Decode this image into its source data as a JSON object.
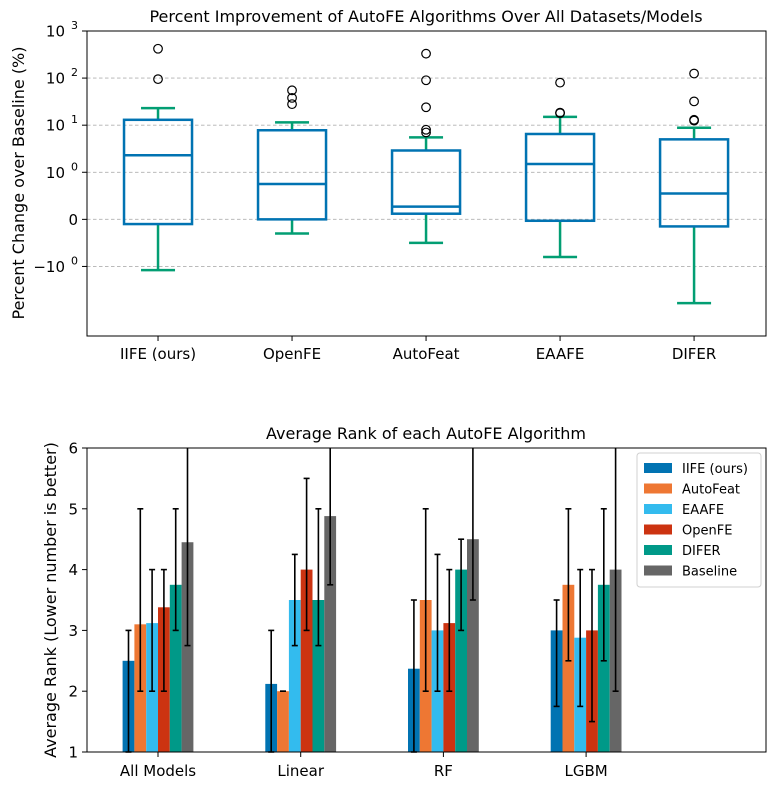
{
  "chart_data": [
    {
      "type": "box",
      "title": "Percent Improvement of AutoFE Algorithms Over All Datasets/Models",
      "ylabel": "Percent Change over Baseline (%)",
      "yscale": "symlog",
      "ylim": [
        -30,
        1000
      ],
      "yticks": [
        {
          "value": 1000,
          "label": "10",
          "exp": "3"
        },
        {
          "value": 100,
          "label": "10",
          "exp": "2"
        },
        {
          "value": 10,
          "label": "10",
          "exp": "1"
        },
        {
          "value": 1,
          "label": "10",
          "exp": "0"
        },
        {
          "value": 0,
          "label": "0",
          "exp": ""
        },
        {
          "value": -1,
          "label": "−10",
          "exp": "0"
        }
      ],
      "grid": "y",
      "box_color": "#0173b2",
      "whisker_color": "#029e73",
      "categories": [
        "IIFE (ours)",
        "OpenFE",
        "AutoFeat",
        "EAAFE",
        "DIFER"
      ],
      "boxes": [
        {
          "whislo": -1.2,
          "q1": -0.1,
          "med": 2.3,
          "q3": 13,
          "whishi": 23,
          "fliers": [
            95,
            420
          ]
        },
        {
          "whislo": -0.3,
          "q1": 0.0,
          "med": 0.75,
          "q3": 7.8,
          "whishi": 11.5,
          "fliers": [
            28,
            38,
            55
          ]
        },
        {
          "whislo": -0.5,
          "q1": 0.12,
          "med": 0.27,
          "q3": 2.9,
          "whishi": 5.5,
          "fliers": [
            7.0,
            8.0,
            24,
            90,
            330
          ]
        },
        {
          "whislo": -0.8,
          "q1": -0.03,
          "med": 1.5,
          "q3": 6.5,
          "whishi": 15,
          "fliers": [
            18,
            18.5,
            80
          ]
        },
        {
          "whislo": -6.0,
          "q1": -0.15,
          "med": 0.55,
          "q3": 5.0,
          "whishi": 8.8,
          "fliers": [
            12.5,
            13,
            32,
            125
          ]
        }
      ]
    },
    {
      "type": "bar",
      "title": "Average Rank of each AutoFE Algorithm",
      "ylabel": "Average Rank (Lower number is better)",
      "ylim": [
        1,
        6
      ],
      "yticks": [
        1,
        2,
        3,
        4,
        5,
        6
      ],
      "legend_position": "top-right",
      "categories": [
        "All Models",
        "Linear",
        "RF",
        "LGBM"
      ],
      "series": [
        {
          "name": "IIFE (ours)",
          "color": "#0173b2",
          "values": [
            2.5,
            2.12,
            2.37,
            3.0
          ],
          "err_low": [
            1.0,
            1.0,
            1.0,
            1.75
          ],
          "err_high": [
            3.0,
            3.0,
            3.5,
            3.5
          ]
        },
        {
          "name": "AutoFeat",
          "color": "#ee7733",
          "values": [
            3.1,
            2.0,
            3.5,
            3.75
          ],
          "err_low": [
            2.0,
            2.0,
            2.0,
            2.5
          ],
          "err_high": [
            5.0,
            2.0,
            5.0,
            5.0
          ]
        },
        {
          "name": "EAAFE",
          "color": "#33bbee",
          "values": [
            3.12,
            3.5,
            3.0,
            2.88
          ],
          "err_low": [
            2.0,
            2.75,
            2.0,
            1.75
          ],
          "err_high": [
            4.0,
            4.25,
            4.25,
            4.0
          ]
        },
        {
          "name": "OpenFE",
          "color": "#cc3311",
          "values": [
            3.38,
            4.0,
            3.12,
            3.0
          ],
          "err_low": [
            2.0,
            3.0,
            2.0,
            1.5
          ],
          "err_high": [
            4.0,
            5.5,
            4.0,
            4.0
          ]
        },
        {
          "name": "DIFER",
          "color": "#009988",
          "values": [
            3.75,
            3.5,
            4.0,
            3.75
          ],
          "err_low": [
            3.0,
            2.75,
            3.0,
            2.5
          ],
          "err_high": [
            5.0,
            5.0,
            4.5,
            5.0
          ]
        },
        {
          "name": "Baseline",
          "color": "#666666",
          "values": [
            4.45,
            4.88,
            4.5,
            4.0
          ],
          "err_low": [
            2.75,
            3.75,
            3.5,
            2.0
          ],
          "err_high": [
            6.5,
            6.5,
            6.5,
            6.5
          ]
        }
      ]
    }
  ]
}
